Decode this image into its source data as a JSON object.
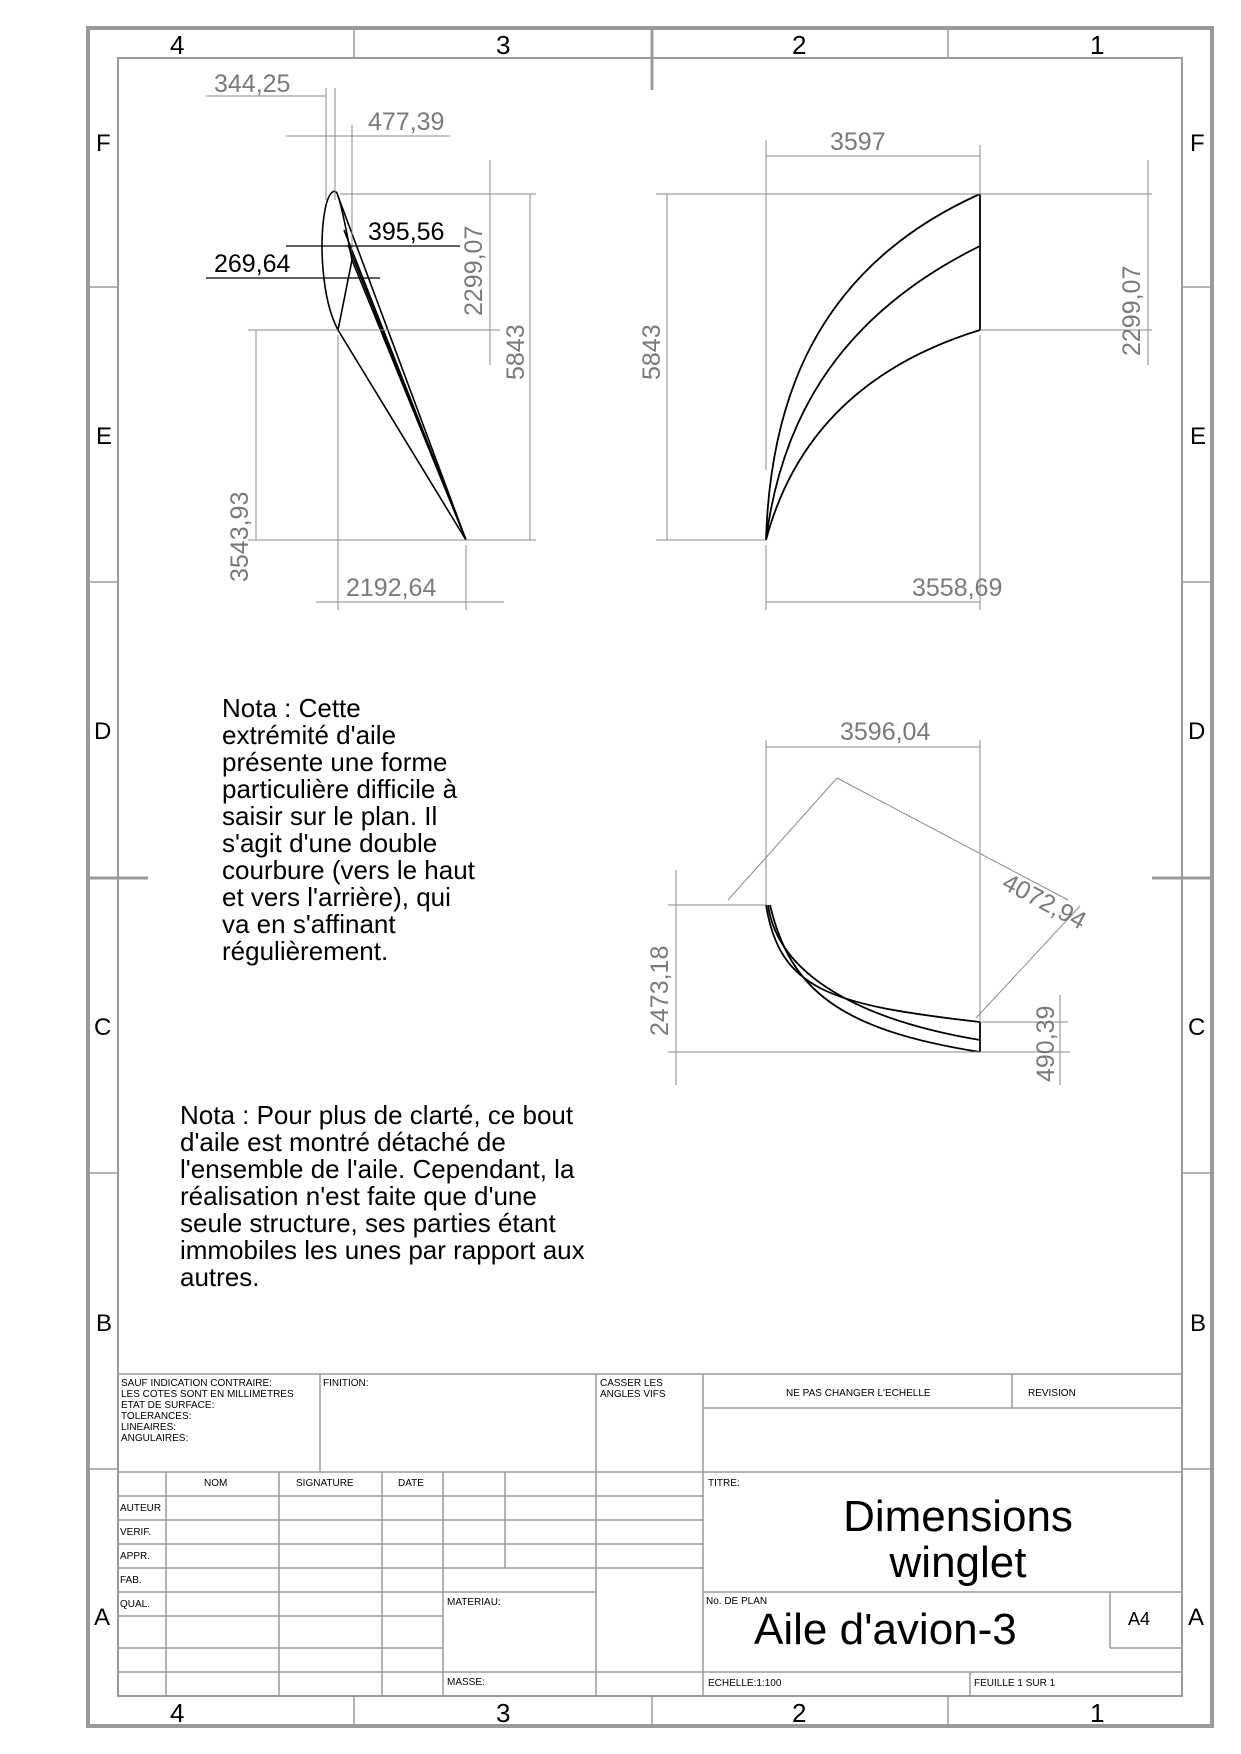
{
  "zones": {
    "columns": [
      "4",
      "3",
      "2",
      "1"
    ],
    "rows": [
      "F",
      "E",
      "D",
      "C",
      "B",
      "A"
    ]
  },
  "dimensions": {
    "front": {
      "d1": "344,25",
      "d2": "477,39",
      "d3": "395,56",
      "d4": "269,64",
      "d5": "2299,07",
      "d6": "5843",
      "d7": "3543,93",
      "d8": "2192,64"
    },
    "side": {
      "d1": "3597",
      "d2": "5843",
      "d3": "2299,07",
      "d4": "3558,69"
    },
    "top": {
      "d1": "3596,04",
      "d2": "4072,94",
      "d3": "2473,18",
      "d4": "490,39"
    }
  },
  "notes": {
    "note1": "Nota : Cette\nextrémité d'aile\nprésente une forme\nparticulière difficile à\nsaisir sur le plan. Il\ns'agit d'une double\ncourbure (vers le haut\net vers l'arrière), qui\nva en s'affinant\nrégulièrement.",
    "note2": "Nota : Pour plus de clarté, ce bout\nd'aile est montré détaché de\nl'ensemble de l'aile. Cependant, la\nréalisation n'est faite que d'une\nseule structure, ses parties étant\nimmobiles les unes par rapport aux\nautres."
  },
  "title_block": {
    "general_notes": "SAUF INDICATION CONTRAIRE:\nLES COTES SONT EN MILLIMETRES\nETAT DE SURFACE:\nTOLERANCES:\n   LINEAIRES:\n   ANGULAIRES:",
    "finish_label": "FINITION:",
    "break_edges": "CASSER LES\nANGLES VIFS",
    "no_scale": "NE PAS CHANGER L'ECHELLE",
    "revision_label": "REVISION",
    "col_nom": "NOM",
    "col_signature": "SIGNATURE",
    "col_date": "DATE",
    "row_auteur": "AUTEUR",
    "row_verif": "VERIF.",
    "row_appr": "APPR.",
    "row_fab": "FAB.",
    "row_qual": "QUAL.",
    "material_label": "MATERIAU:",
    "mass_label": "MASSE:",
    "title_label": "TITRE:",
    "title": "Dimensions\nwinglet",
    "drawing_no_label": "No. DE PLAN",
    "drawing_no": "Aile d'avion-3",
    "sheet_size": "A4",
    "scale": "ECHELLE:1:100",
    "sheet_count": "FEUILLE 1 SUR 1"
  }
}
